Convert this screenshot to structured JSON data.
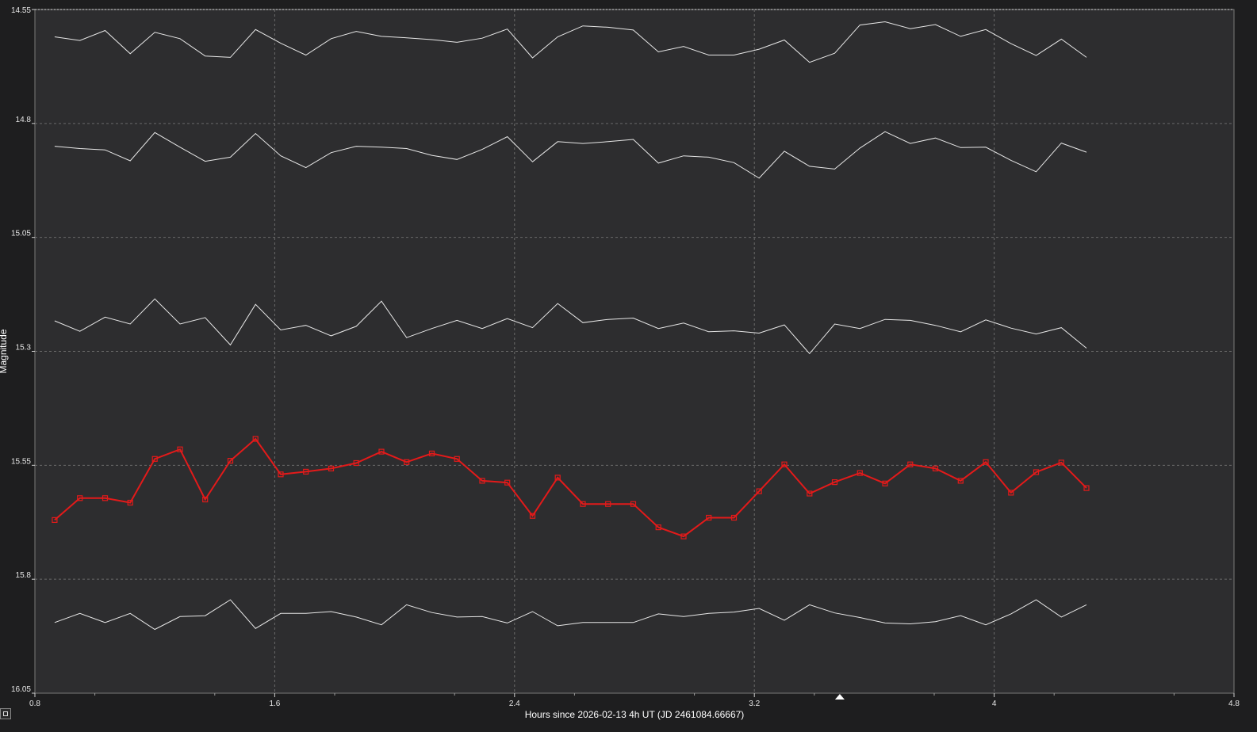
{
  "chart_data": {
    "type": "line",
    "xlabel": "Hours since 2026-02-13 4h UT (JD 2461084.66667)",
    "ylabel": "Magnitude",
    "xlim": [
      0.8,
      4.8
    ],
    "ylim": [
      14.55,
      16.05
    ],
    "y_inverted": false,
    "x_ticks": [
      "0.8",
      "1.6",
      "2.4",
      "3.2",
      "4",
      "4.8"
    ],
    "y_ticks": [
      "14.55",
      "14.8",
      "15.05",
      "15.3",
      "15.55",
      "15.8",
      "16.05"
    ],
    "x_marker": 3.485,
    "grid": true,
    "x": [
      0.866,
      0.95,
      1.034,
      1.118,
      1.2,
      1.284,
      1.368,
      1.452,
      1.536,
      1.62,
      1.704,
      1.788,
      1.872,
      1.956,
      2.04,
      2.124,
      2.208,
      2.292,
      2.376,
      2.46,
      2.544,
      2.628,
      2.712,
      2.796,
      2.88,
      2.964,
      3.048,
      3.132,
      3.216,
      3.3,
      3.384,
      3.468,
      3.552,
      3.636,
      3.72,
      3.804,
      3.888,
      3.972,
      4.056,
      4.14,
      4.224,
      4.308
    ],
    "series": [
      {
        "color": "#e8e8e8",
        "highlight": false,
        "values": [
          14.61,
          14.618,
          14.596,
          14.647,
          14.6,
          14.614,
          14.652,
          14.655,
          14.594,
          14.624,
          14.65,
          14.614,
          14.598,
          14.609,
          14.612,
          14.616,
          14.622,
          14.613,
          14.593,
          14.656,
          14.61,
          14.586,
          14.589,
          14.595,
          14.643,
          14.631,
          14.65,
          14.65,
          14.637,
          14.617,
          14.666,
          14.646,
          14.584,
          14.577,
          14.592,
          14.583,
          14.609,
          14.594,
          14.625,
          14.651,
          14.615,
          14.655
        ]
      },
      {
        "color": "#e8e8e8",
        "highlight": false,
        "values": [
          14.85,
          14.855,
          14.858,
          14.882,
          14.82,
          14.852,
          14.883,
          14.874,
          14.822,
          14.871,
          14.897,
          14.864,
          14.85,
          14.852,
          14.855,
          14.87,
          14.879,
          14.857,
          14.829,
          14.884,
          14.84,
          14.844,
          14.84,
          14.835,
          14.887,
          14.871,
          14.874,
          14.886,
          14.92,
          14.861,
          14.894,
          14.9,
          14.854,
          14.818,
          14.844,
          14.832,
          14.853,
          14.852,
          14.881,
          14.906,
          14.843,
          14.863
        ]
      },
      {
        "color": "#e8e8e8",
        "highlight": false,
        "values": [
          15.233,
          15.256,
          15.225,
          15.24,
          15.185,
          15.24,
          15.226,
          15.286,
          15.197,
          15.253,
          15.243,
          15.266,
          15.245,
          15.19,
          15.27,
          15.25,
          15.232,
          15.25,
          15.228,
          15.248,
          15.195,
          15.237,
          15.23,
          15.227,
          15.25,
          15.238,
          15.257,
          15.255,
          15.26,
          15.242,
          15.305,
          15.24,
          15.25,
          15.23,
          15.232,
          15.243,
          15.257,
          15.231,
          15.249,
          15.262,
          15.248,
          15.293
        ]
      },
      {
        "color": "#e31a1a",
        "highlight": true,
        "marker": "square",
        "values": [
          15.67,
          15.622,
          15.622,
          15.632,
          15.536,
          15.515,
          15.625,
          15.54,
          15.492,
          15.57,
          15.564,
          15.557,
          15.545,
          15.52,
          15.543,
          15.524,
          15.536,
          15.584,
          15.588,
          15.661,
          15.577,
          15.635,
          15.635,
          15.635,
          15.686,
          15.706,
          15.665,
          15.665,
          15.607,
          15.548,
          15.612,
          15.587,
          15.567,
          15.59,
          15.548,
          15.557,
          15.584,
          15.543,
          15.61,
          15.565,
          15.544,
          15.6
        ]
      },
      {
        "color": "#e8e8e8",
        "highlight": false,
        "values": [
          15.895,
          15.875,
          15.895,
          15.875,
          15.91,
          15.882,
          15.88,
          15.845,
          15.908,
          15.875,
          15.875,
          15.871,
          15.883,
          15.9,
          15.856,
          15.873,
          15.883,
          15.882,
          15.896,
          15.871,
          15.902,
          15.895,
          15.895,
          15.895,
          15.876,
          15.882,
          15.875,
          15.872,
          15.864,
          15.89,
          15.856,
          15.874,
          15.884,
          15.896,
          15.898,
          15.893,
          15.88,
          15.9,
          15.876,
          15.845,
          15.883,
          15.856
        ]
      }
    ]
  }
}
